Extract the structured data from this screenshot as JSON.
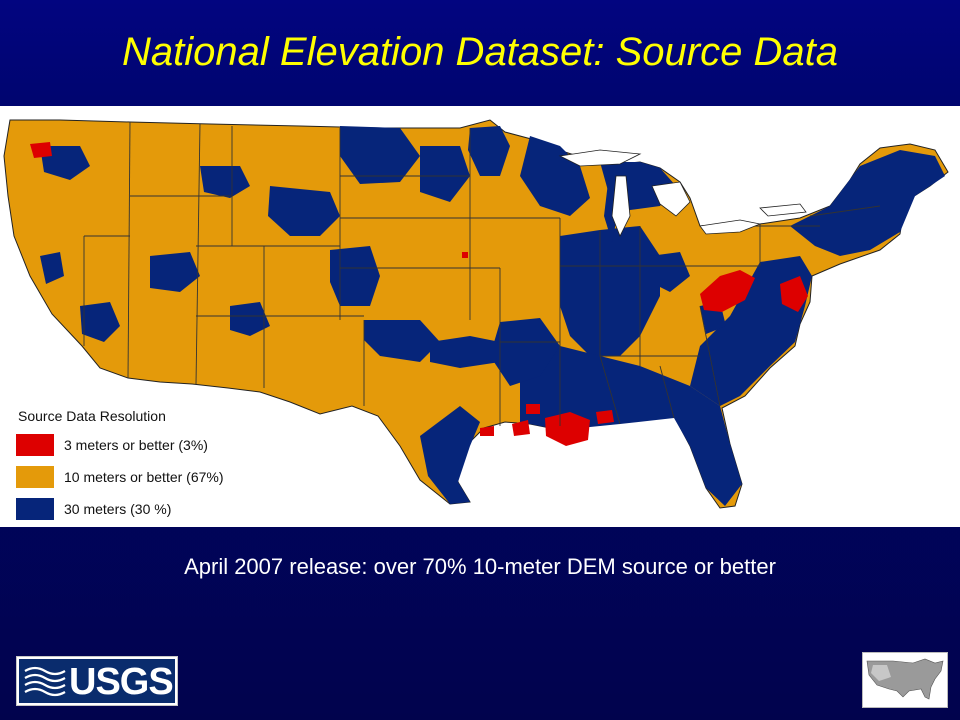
{
  "slide": {
    "title": "National Elevation Dataset: Source Data",
    "caption": "April 2007 release: over 70% 10-meter DEM source or better"
  },
  "legend": {
    "title": "Source Data Resolution",
    "items": [
      {
        "label": "3 meters or better (3%)",
        "color": "#dd0000"
      },
      {
        "label": "10 meters or better (67%)",
        "color": "#e49a0a"
      },
      {
        "label": "30 meters (30 %)",
        "color": "#06257a"
      }
    ]
  },
  "logo": {
    "text": "USGS"
  },
  "colors": {
    "title_text": "#ffff00",
    "background": "#00046e",
    "map_background": "#ffffff",
    "state_border": "#333333"
  },
  "icons": [
    "usgs-waves-icon",
    "us-relief-thumbnail-icon"
  ]
}
